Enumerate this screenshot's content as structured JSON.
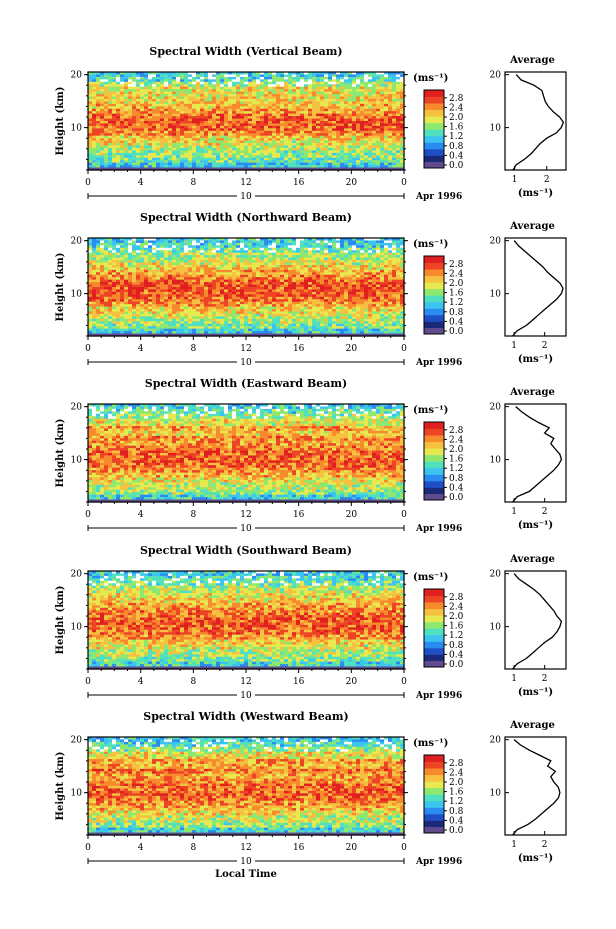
{
  "colors": {
    "colormap": [
      "#1a2a78",
      "#1f4fc4",
      "#2a8cf0",
      "#3cc4f0",
      "#50e0c0",
      "#8ee870",
      "#e6ea50",
      "#f6c040",
      "#f88a2e",
      "#ee4426",
      "#e02020"
    ],
    "low_band": "#5f4a8e"
  },
  "chart_data": [
    {
      "type": "heatmap",
      "title": "Spectral Width (Vertical Beam)",
      "xlabel": "",
      "ylabel": "Height (km)",
      "x_ticks": [
        "0",
        "4",
        "8",
        "12",
        "16",
        "20",
        "0"
      ],
      "y_ticks": [
        "10",
        "20"
      ],
      "ylim": [
        2,
        20.5
      ],
      "xlim": [
        0,
        24
      ],
      "date_label": "10",
      "month_label": "Apr 1996",
      "colorbar": {
        "unit": "(ms⁻¹)",
        "ticks": [
          "0.0",
          "0.4",
          "0.8",
          "1.2",
          "1.6",
          "2.0",
          "2.4",
          "2.8"
        ],
        "range": [
          0,
          3
        ]
      },
      "profile": {
        "title": "Average",
        "xlabel": "(ms⁻¹)",
        "x_ticks": [
          "1",
          "2"
        ],
        "y_ticks": [
          "10",
          "20"
        ],
        "xlim": [
          0.7,
          2.6
        ],
        "heights": [
          2,
          3,
          4,
          5,
          6,
          7,
          8,
          9,
          10,
          11,
          12,
          13,
          14,
          15,
          16,
          17,
          18,
          19,
          20
        ],
        "values": [
          0.95,
          1.05,
          1.3,
          1.5,
          1.65,
          1.8,
          2.0,
          2.3,
          2.45,
          2.52,
          2.4,
          2.2,
          2.05,
          1.95,
          1.9,
          1.85,
          1.6,
          1.2,
          1.05
        ]
      }
    },
    {
      "type": "heatmap",
      "title": "Spectral Width (Northward Beam)",
      "xlabel": "",
      "ylabel": "Height (km)",
      "x_ticks": [
        "0",
        "4",
        "8",
        "12",
        "16",
        "20",
        "0"
      ],
      "y_ticks": [
        "10",
        "20"
      ],
      "ylim": [
        2,
        20.5
      ],
      "xlim": [
        0,
        24
      ],
      "date_label": "10",
      "month_label": "Apr 1996",
      "colorbar": {
        "unit": "(ms⁻¹)",
        "ticks": [
          "0.0",
          "0.4",
          "0.8",
          "1.2",
          "1.6",
          "2.0",
          "2.4",
          "2.8"
        ],
        "range": [
          0,
          3
        ]
      },
      "profile": {
        "title": "Average",
        "xlabel": "(ms⁻¹)",
        "x_ticks": [
          "1",
          "2"
        ],
        "y_ticks": [
          "10",
          "20"
        ],
        "xlim": [
          0.7,
          2.7
        ],
        "heights": [
          2,
          3,
          4,
          5,
          6,
          7,
          8,
          9,
          10,
          11,
          12,
          13,
          14,
          15,
          16,
          17,
          18,
          19,
          20
        ],
        "values": [
          0.95,
          1.1,
          1.4,
          1.6,
          1.8,
          2.0,
          2.2,
          2.4,
          2.55,
          2.6,
          2.5,
          2.3,
          2.1,
          1.95,
          1.75,
          1.55,
          1.35,
          1.15,
          1.0
        ]
      }
    },
    {
      "type": "heatmap",
      "title": "Spectral Width (Eastward Beam)",
      "xlabel": "",
      "ylabel": "Height (km)",
      "x_ticks": [
        "0",
        "4",
        "8",
        "12",
        "16",
        "20",
        "0"
      ],
      "y_ticks": [
        "10",
        "20"
      ],
      "ylim": [
        2,
        20.5
      ],
      "xlim": [
        0,
        24
      ],
      "date_label": "10",
      "month_label": "Apr 1996",
      "colorbar": {
        "unit": "(ms⁻¹)",
        "ticks": [
          "0.0",
          "0.4",
          "0.8",
          "1.2",
          "1.6",
          "2.0",
          "2.4",
          "2.8"
        ],
        "range": [
          0,
          3
        ]
      },
      "profile": {
        "title": "Average",
        "xlabel": "(ms⁻¹)",
        "x_ticks": [
          "1",
          "2"
        ],
        "y_ticks": [
          "10",
          "20"
        ],
        "xlim": [
          0.7,
          2.7
        ],
        "heights": [
          2,
          3,
          4,
          5,
          6,
          7,
          8,
          9,
          10,
          11,
          12,
          13,
          14,
          15,
          16,
          17,
          18,
          19,
          20
        ],
        "values": [
          0.95,
          1.1,
          1.5,
          1.7,
          1.9,
          2.1,
          2.3,
          2.45,
          2.55,
          2.5,
          2.35,
          2.2,
          2.3,
          2.0,
          2.15,
          1.8,
          1.5,
          1.25,
          1.05
        ]
      }
    },
    {
      "type": "heatmap",
      "title": "Spectral Width (Southward Beam)",
      "xlabel": "",
      "ylabel": "Height (km)",
      "x_ticks": [
        "0",
        "4",
        "8",
        "12",
        "16",
        "20",
        "0"
      ],
      "y_ticks": [
        "10",
        "20"
      ],
      "ylim": [
        2,
        20.5
      ],
      "xlim": [
        0,
        24
      ],
      "date_label": "10",
      "month_label": "Apr 1996",
      "colorbar": {
        "unit": "(ms⁻¹)",
        "ticks": [
          "0.0",
          "0.4",
          "0.8",
          "1.2",
          "1.6",
          "2.0",
          "2.4",
          "2.8"
        ],
        "range": [
          0,
          3
        ]
      },
      "profile": {
        "title": "Average",
        "xlabel": "(ms⁻¹)",
        "x_ticks": [
          "1",
          "2"
        ],
        "y_ticks": [
          "10",
          "20"
        ],
        "xlim": [
          0.7,
          2.7
        ],
        "heights": [
          2,
          3,
          4,
          5,
          6,
          7,
          8,
          9,
          10,
          11,
          12,
          13,
          14,
          15,
          16,
          17,
          18,
          19,
          20
        ],
        "values": [
          0.95,
          1.1,
          1.4,
          1.6,
          1.8,
          2.0,
          2.25,
          2.4,
          2.5,
          2.55,
          2.4,
          2.3,
          2.15,
          2.0,
          1.85,
          1.65,
          1.4,
          1.15,
          1.0
        ]
      }
    },
    {
      "type": "heatmap",
      "title": "Spectral Width (Westward Beam)",
      "xlabel": "Local Time",
      "ylabel": "Height (km)",
      "x_ticks": [
        "0",
        "4",
        "8",
        "12",
        "16",
        "20",
        "0"
      ],
      "y_ticks": [
        "10",
        "20"
      ],
      "ylim": [
        2,
        20.5
      ],
      "xlim": [
        0,
        24
      ],
      "date_label": "10",
      "month_label": "Apr 1996",
      "colorbar": {
        "unit": "(ms⁻¹)",
        "ticks": [
          "0.0",
          "0.4",
          "0.8",
          "1.2",
          "1.6",
          "2.0",
          "2.4",
          "2.8"
        ],
        "range": [
          0,
          3
        ]
      },
      "profile": {
        "title": "Average",
        "xlabel": "(ms⁻¹)",
        "x_ticks": [
          "1",
          "2"
        ],
        "y_ticks": [
          "10",
          "20"
        ],
        "xlim": [
          0.7,
          2.7
        ],
        "heights": [
          2,
          3,
          4,
          5,
          6,
          7,
          8,
          9,
          10,
          11,
          12,
          13,
          14,
          15,
          16,
          17,
          18,
          19,
          20
        ],
        "values": [
          0.95,
          1.1,
          1.45,
          1.7,
          1.9,
          2.1,
          2.3,
          2.45,
          2.5,
          2.45,
          2.3,
          2.2,
          2.35,
          2.1,
          2.2,
          1.85,
          1.5,
          1.2,
          1.0
        ]
      }
    }
  ]
}
